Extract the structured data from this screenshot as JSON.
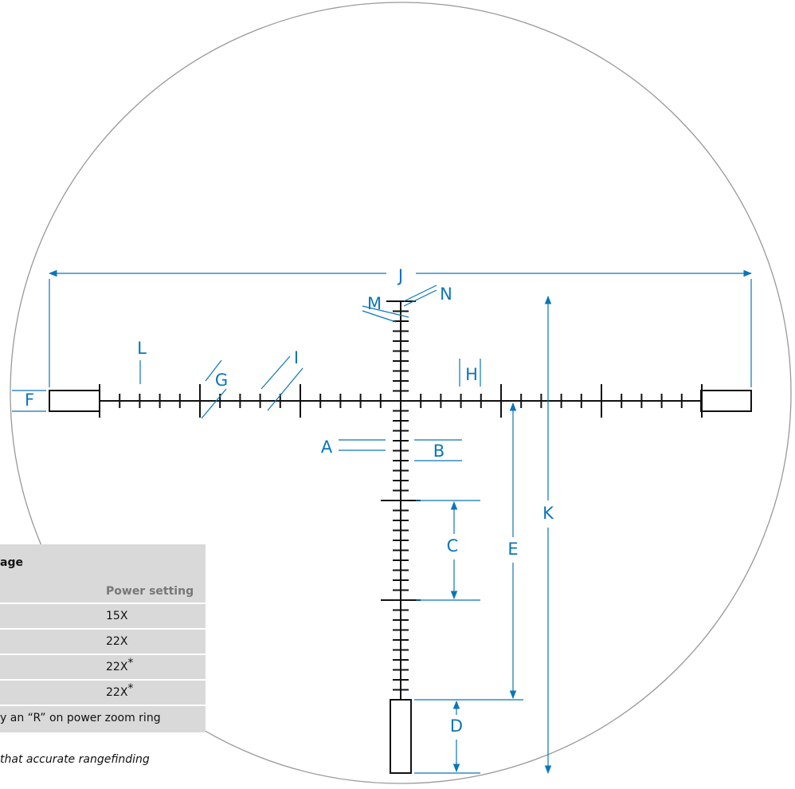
{
  "labels": [
    "A",
    "B",
    "C",
    "D",
    "E",
    "F",
    "G",
    "H",
    "I",
    "J",
    "K",
    "L",
    "M",
    "N"
  ],
  "table": {
    "title": "age",
    "header": "Power setting",
    "rows": [
      "15X",
      "22X",
      "22X",
      "22X"
    ],
    "marks": [
      null,
      null,
      "*",
      "*"
    ],
    "footnote": "y an “R” on power zoom ring"
  },
  "note": "that accurate rangefinding"
}
